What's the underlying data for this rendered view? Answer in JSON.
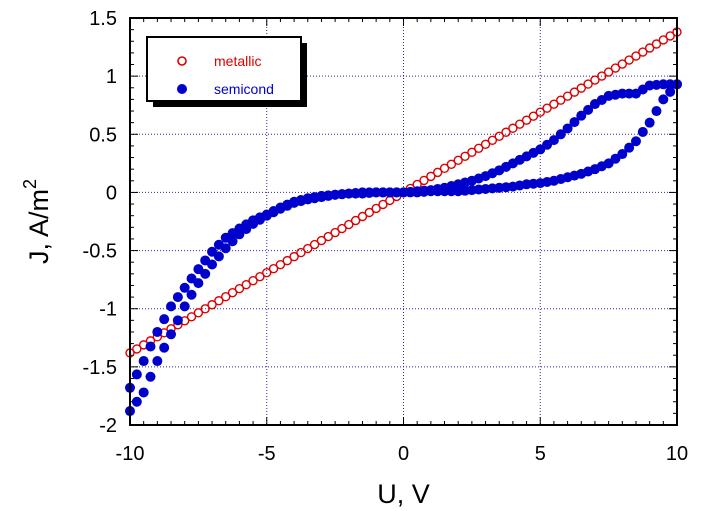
{
  "chart_data": {
    "type": "scatter",
    "title": "",
    "xlabel": "U, V",
    "ylabel_main": "J, A/m",
    "ylabel_sup": "2",
    "xlim": [
      -10,
      10
    ],
    "ylim": [
      -2,
      1.5
    ],
    "xticks": [
      -10,
      -5,
      0,
      5,
      10
    ],
    "xtick_labels": [
      "-10",
      "-5",
      "0",
      "5",
      "10"
    ],
    "yticks": [
      -2,
      -1.5,
      -1,
      -0.5,
      0,
      0.5,
      1,
      1.5
    ],
    "ytick_labels": [
      "-2",
      "-1.5",
      "-1",
      "-0.5",
      "0",
      "0.5",
      "1",
      "1.5"
    ],
    "grid": true,
    "legend_position": "top-left",
    "series": [
      {
        "name": "metallic",
        "marker": "open-circle",
        "color": "#dd0000",
        "x_range": [
          -10,
          10
        ],
        "x_step": 0.25,
        "y_linear_slope": 0.138
      },
      {
        "name": "semicond",
        "marker": "filled-circle",
        "color": "#0000cc",
        "upper_branch": [
          [
            -10,
            -1.68
          ],
          [
            -9.5,
            -1.45
          ],
          [
            -9,
            -1.2
          ],
          [
            -8.5,
            -0.98
          ],
          [
            -8,
            -0.82
          ],
          [
            -7.5,
            -0.66
          ],
          [
            -7,
            -0.51
          ],
          [
            -6.5,
            -0.39
          ],
          [
            -6,
            -0.31
          ],
          [
            -5.5,
            -0.24
          ],
          [
            -5,
            -0.19
          ],
          [
            -4.5,
            -0.13
          ],
          [
            -4,
            -0.08
          ],
          [
            -3.5,
            -0.05
          ],
          [
            -3,
            -0.03
          ],
          [
            -2.5,
            -0.02
          ],
          [
            -2,
            -0.01
          ],
          [
            -1.5,
            -0.01
          ],
          [
            -1,
            0
          ],
          [
            -0.5,
            0
          ],
          [
            0,
            0
          ],
          [
            0.5,
            0.01
          ],
          [
            1,
            0.02
          ],
          [
            1.5,
            0.04
          ],
          [
            2,
            0.07
          ],
          [
            2.5,
            0.1
          ],
          [
            3,
            0.14
          ],
          [
            3.5,
            0.19
          ],
          [
            4,
            0.25
          ],
          [
            4.5,
            0.31
          ],
          [
            5,
            0.37
          ],
          [
            5.5,
            0.45
          ],
          [
            6,
            0.55
          ],
          [
            6.5,
            0.66
          ],
          [
            7,
            0.76
          ],
          [
            7.5,
            0.83
          ],
          [
            8,
            0.85
          ],
          [
            8.5,
            0.85
          ],
          [
            9,
            0.92
          ],
          [
            9.5,
            0.93
          ],
          [
            10,
            0.93
          ]
        ],
        "lower_branch": [
          [
            -10,
            -1.88
          ],
          [
            -9.5,
            -1.72
          ],
          [
            -9,
            -1.45
          ],
          [
            -8.5,
            -1.22
          ],
          [
            -8,
            -0.98
          ],
          [
            -7.5,
            -0.78
          ],
          [
            -7,
            -0.62
          ],
          [
            -6.5,
            -0.48
          ],
          [
            -6,
            -0.36
          ],
          [
            -5.5,
            -0.27
          ],
          [
            -5,
            -0.2
          ],
          [
            -4.5,
            -0.14
          ],
          [
            -4,
            -0.09
          ],
          [
            -3.5,
            -0.06
          ],
          [
            -3,
            -0.04
          ],
          [
            -2.5,
            -0.02
          ],
          [
            -2,
            -0.01
          ],
          [
            -1.5,
            0
          ],
          [
            -1,
            0
          ],
          [
            -0.5,
            0
          ],
          [
            0,
            0
          ],
          [
            0.5,
            0
          ],
          [
            1,
            0.01
          ],
          [
            1.5,
            0.01
          ],
          [
            2,
            0.01
          ],
          [
            2.5,
            0.02
          ],
          [
            3,
            0.03
          ],
          [
            3.5,
            0.04
          ],
          [
            4,
            0.05
          ],
          [
            4.5,
            0.07
          ],
          [
            5,
            0.08
          ],
          [
            5.5,
            0.1
          ],
          [
            6,
            0.13
          ],
          [
            6.5,
            0.16
          ],
          [
            7,
            0.2
          ],
          [
            7.5,
            0.25
          ],
          [
            8,
            0.33
          ],
          [
            8.5,
            0.44
          ],
          [
            9,
            0.6
          ],
          [
            9.5,
            0.8
          ],
          [
            10,
            0.93
          ]
        ]
      }
    ]
  }
}
